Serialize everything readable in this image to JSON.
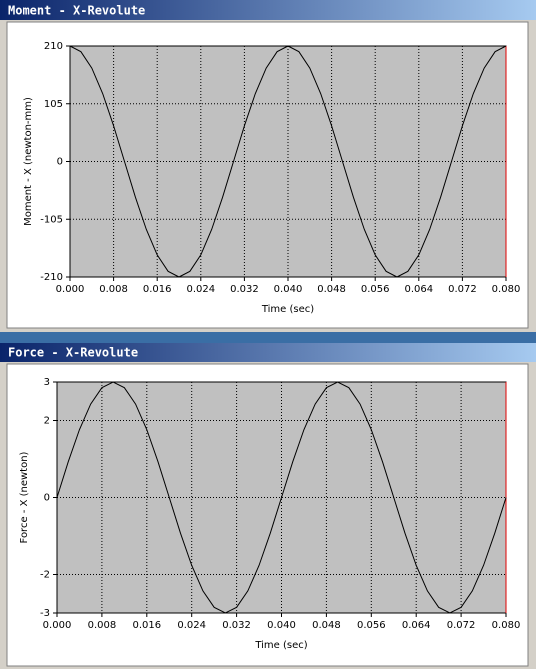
{
  "chart_data": [
    {
      "type": "line",
      "title": "Moment - X-Revolute",
      "xlabel": "Time (sec)",
      "ylabel": "Moment - X (newton-mm)",
      "color": "#000000",
      "grid": true,
      "x": [
        0,
        0.002,
        0.004,
        0.006,
        0.008,
        0.01,
        0.012,
        0.014,
        0.016,
        0.018,
        0.02,
        0.022,
        0.024,
        0.026,
        0.028,
        0.03,
        0.032,
        0.034,
        0.036,
        0.038,
        0.04,
        0.042,
        0.044,
        0.046,
        0.048,
        0.05,
        0.052,
        0.054,
        0.056,
        0.058,
        0.06,
        0.062,
        0.064,
        0.066,
        0.068,
        0.07,
        0.072,
        0.074,
        0.076,
        0.078,
        0.08
      ],
      "values": [
        210,
        199.7,
        169.9,
        123.4,
        64.9,
        0,
        -64.9,
        -123.4,
        -169.9,
        -199.7,
        -210,
        -199.7,
        -169.9,
        -123.4,
        -64.9,
        0,
        64.9,
        123.4,
        169.9,
        199.7,
        210,
        199.7,
        169.9,
        123.4,
        64.9,
        0,
        -64.9,
        -123.4,
        -169.9,
        -199.7,
        -210,
        -199.7,
        -169.9,
        -123.4,
        -64.9,
        0,
        64.9,
        123.4,
        169.9,
        199.7,
        210
      ],
      "xlim": [
        0,
        0.08
      ],
      "xticks": [
        {
          "value": 0,
          "label": "0.000"
        },
        {
          "value": 0.008,
          "label": "0.008"
        },
        {
          "value": 0.016,
          "label": "0.016"
        },
        {
          "value": 0.024,
          "label": "0.024"
        },
        {
          "value": 0.032,
          "label": "0.032"
        },
        {
          "value": 0.04,
          "label": "0.040"
        },
        {
          "value": 0.048,
          "label": "0.048"
        },
        {
          "value": 0.056,
          "label": "0.056"
        },
        {
          "value": 0.064,
          "label": "0.064"
        },
        {
          "value": 0.072,
          "label": "0.072"
        },
        {
          "value": 0.08,
          "label": "0.080"
        }
      ],
      "ylim": [
        -210,
        210
      ],
      "yticks": [
        210,
        105,
        0,
        -105,
        -210
      ]
    },
    {
      "type": "line",
      "title": "Force - X-Revolute",
      "xlabel": "Time (sec)",
      "ylabel": "Force - X (newton)",
      "color": "#000000",
      "grid": true,
      "x": [
        0,
        0.002,
        0.004,
        0.006,
        0.008,
        0.01,
        0.012,
        0.014,
        0.016,
        0.018,
        0.02,
        0.022,
        0.024,
        0.026,
        0.028,
        0.03,
        0.032,
        0.034,
        0.036,
        0.038,
        0.04,
        0.042,
        0.044,
        0.046,
        0.048,
        0.05,
        0.052,
        0.054,
        0.056,
        0.058,
        0.06,
        0.062,
        0.064,
        0.066,
        0.068,
        0.07,
        0.072,
        0.074,
        0.076,
        0.078,
        0.08
      ],
      "values": [
        0,
        0.927,
        1.763,
        2.427,
        2.853,
        3,
        2.853,
        2.427,
        1.763,
        0.927,
        0,
        -0.927,
        -1.763,
        -2.427,
        -2.853,
        -3,
        -2.853,
        -2.427,
        -1.763,
        -0.927,
        0,
        0.927,
        1.763,
        2.427,
        2.853,
        3,
        2.853,
        2.427,
        1.763,
        0.927,
        0,
        -0.927,
        -1.763,
        -2.427,
        -2.853,
        -3,
        -2.853,
        -2.427,
        -1.763,
        -0.927,
        0
      ],
      "xlim": [
        0,
        0.08
      ],
      "xticks": [
        {
          "value": 0,
          "label": "0.000"
        },
        {
          "value": 0.008,
          "label": "0.008"
        },
        {
          "value": 0.016,
          "label": "0.016"
        },
        {
          "value": 0.024,
          "label": "0.024"
        },
        {
          "value": 0.032,
          "label": "0.032"
        },
        {
          "value": 0.04,
          "label": "0.040"
        },
        {
          "value": 0.048,
          "label": "0.048"
        },
        {
          "value": 0.056,
          "label": "0.056"
        },
        {
          "value": 0.064,
          "label": "0.064"
        },
        {
          "value": 0.072,
          "label": "0.072"
        },
        {
          "value": 0.08,
          "label": "0.080"
        }
      ],
      "ylim": [
        -3,
        3
      ],
      "yticks": [
        3,
        2,
        0,
        -2,
        -3
      ]
    }
  ]
}
